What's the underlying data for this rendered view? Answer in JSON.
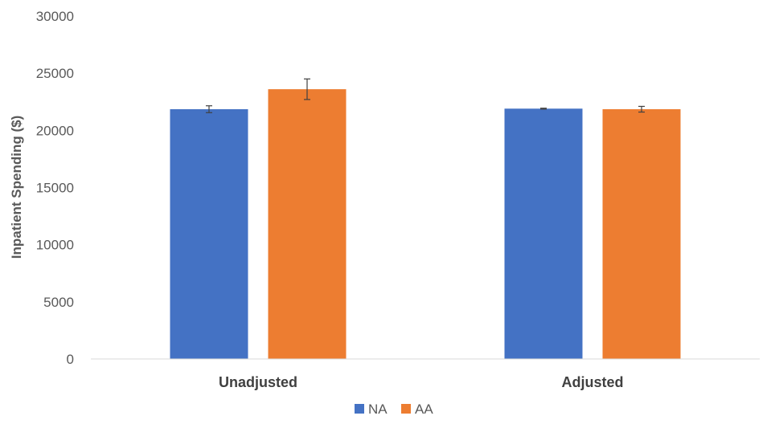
{
  "chart_data": {
    "type": "bar",
    "title": "",
    "xlabel": "",
    "ylabel": "Inpatient Spending ($)",
    "categories": [
      "Unadjusted",
      "Adjusted"
    ],
    "series": [
      {
        "name": "NA",
        "color": "#4472C4",
        "values": [
          21850,
          21900
        ],
        "error": [
          300,
          40
        ]
      },
      {
        "name": "AA",
        "color": "#ED7D31",
        "values": [
          23600,
          21850
        ],
        "error": [
          900,
          250
        ]
      }
    ],
    "ylim": [
      0,
      30000
    ],
    "yticks": [
      "0",
      "5000",
      "10000",
      "15000",
      "20000",
      "25000",
      "30000"
    ],
    "grid": false,
    "legend": "bottom-center"
  }
}
